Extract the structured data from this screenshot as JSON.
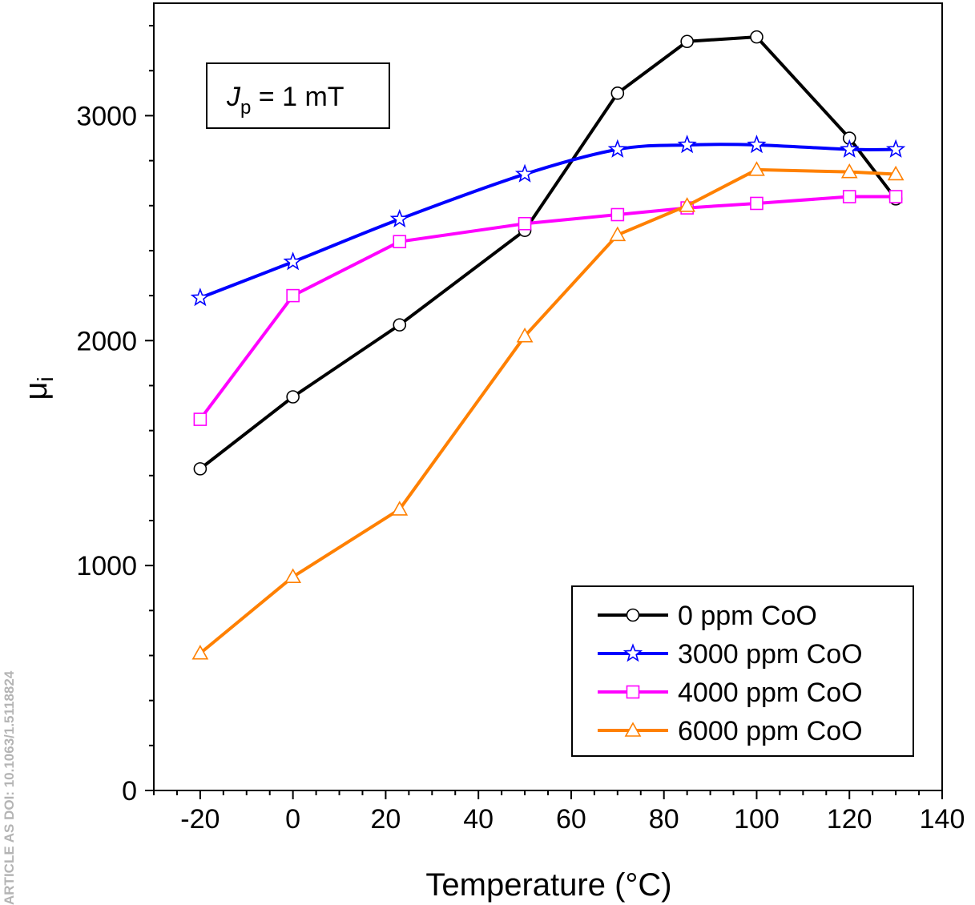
{
  "chart_data": {
    "type": "line",
    "xlabel": "Temperature (°C)",
    "ylabel": "μ",
    "ylabel_sub": "i",
    "xlim": [
      -30,
      140
    ],
    "ylim": [
      0,
      3500
    ],
    "xticks": [
      -20,
      0,
      20,
      40,
      60,
      80,
      100,
      120,
      140
    ],
    "yticks": [
      0,
      1000,
      2000,
      3000
    ],
    "x_minor_step": 5,
    "y_minor_step": 200,
    "grid": false,
    "legend_position": "bottom-right",
    "annotation": {
      "symbol": "J",
      "subscript": "p",
      "rest": " = 1 mT"
    },
    "series": [
      {
        "name": "0 ppm CoO",
        "color": "#000000",
        "marker": "circle",
        "x": [
          -20,
          0,
          23,
          50,
          70,
          85,
          100,
          120,
          130
        ],
        "y": [
          1430,
          1750,
          2070,
          2490,
          3100,
          3330,
          3350,
          2900,
          2630
        ]
      },
      {
        "name": "3000 ppm CoO",
        "color": "#0000ff",
        "marker": "star",
        "x": [
          -20,
          0,
          23,
          50,
          70,
          85,
          100,
          120,
          130
        ],
        "y": [
          2190,
          2350,
          2540,
          2740,
          2850,
          2870,
          2870,
          2850,
          2850
        ]
      },
      {
        "name": "4000 ppm CoO",
        "color": "#ff00ff",
        "marker": "square",
        "x": [
          -20,
          0,
          23,
          50,
          70,
          85,
          100,
          120,
          130
        ],
        "y": [
          1650,
          2200,
          2440,
          2520,
          2560,
          2590,
          2610,
          2640,
          2640
        ]
      },
      {
        "name": "6000 ppm CoO",
        "color": "#ff8000",
        "marker": "triangle",
        "x": [
          -20,
          0,
          23,
          50,
          70,
          85,
          100,
          120,
          130
        ],
        "y": [
          610,
          950,
          1250,
          2020,
          2470,
          2600,
          2760,
          2750,
          2740
        ]
      }
    ]
  },
  "side_text": "ARTICLE AS DOI: 10.1063/1.5118824"
}
